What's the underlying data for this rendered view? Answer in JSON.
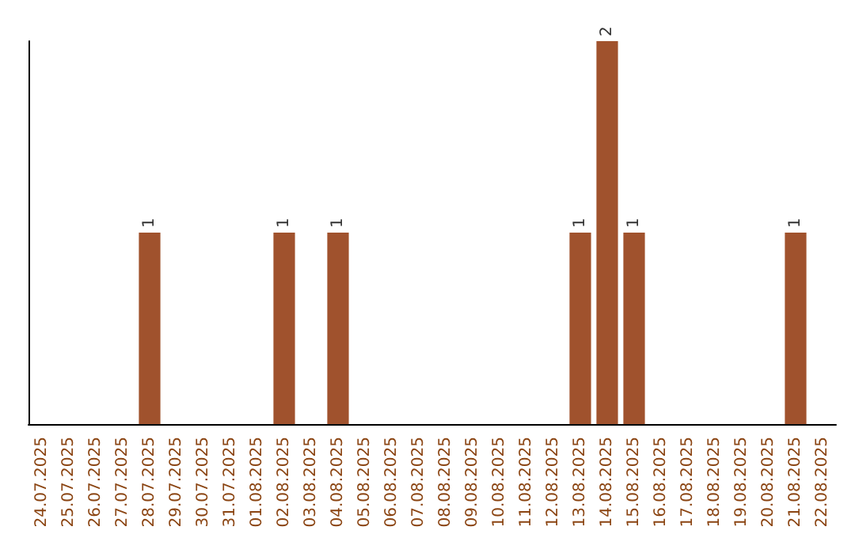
{
  "chart_data": {
    "type": "bar",
    "categories": [
      "24.07.2025",
      "25.07.2025",
      "26.07.2025",
      "27.07.2025",
      "28.07.2025",
      "29.07.2025",
      "30.07.2025",
      "31.07.2025",
      "01.08.2025",
      "02.08.2025",
      "03.08.2025",
      "04.08.2025",
      "05.08.2025",
      "06.08.2025",
      "07.08.2025",
      "08.08.2025",
      "09.08.2025",
      "10.08.2025",
      "11.08.2025",
      "12.08.2025",
      "13.08.2025",
      "14.08.2025",
      "15.08.2025",
      "16.08.2025",
      "17.08.2025",
      "18.08.2025",
      "19.08.2025",
      "20.08.2025",
      "21.08.2025",
      "22.08.2025"
    ],
    "values": [
      0,
      0,
      0,
      0,
      1,
      0,
      0,
      0,
      0,
      1,
      0,
      1,
      0,
      0,
      0,
      0,
      0,
      0,
      0,
      0,
      1,
      2,
      1,
      0,
      0,
      0,
      0,
      0,
      1,
      0
    ],
    "value_labels": [
      null,
      null,
      null,
      null,
      "1",
      null,
      null,
      null,
      null,
      "1",
      null,
      "1",
      null,
      null,
      null,
      null,
      null,
      null,
      null,
      null,
      "1",
      "2",
      "1",
      null,
      null,
      null,
      null,
      null,
      "1",
      null
    ],
    "color": "#a0522d",
    "ylim": [
      0,
      2
    ],
    "tick_labels": "x",
    "grid": false
  }
}
